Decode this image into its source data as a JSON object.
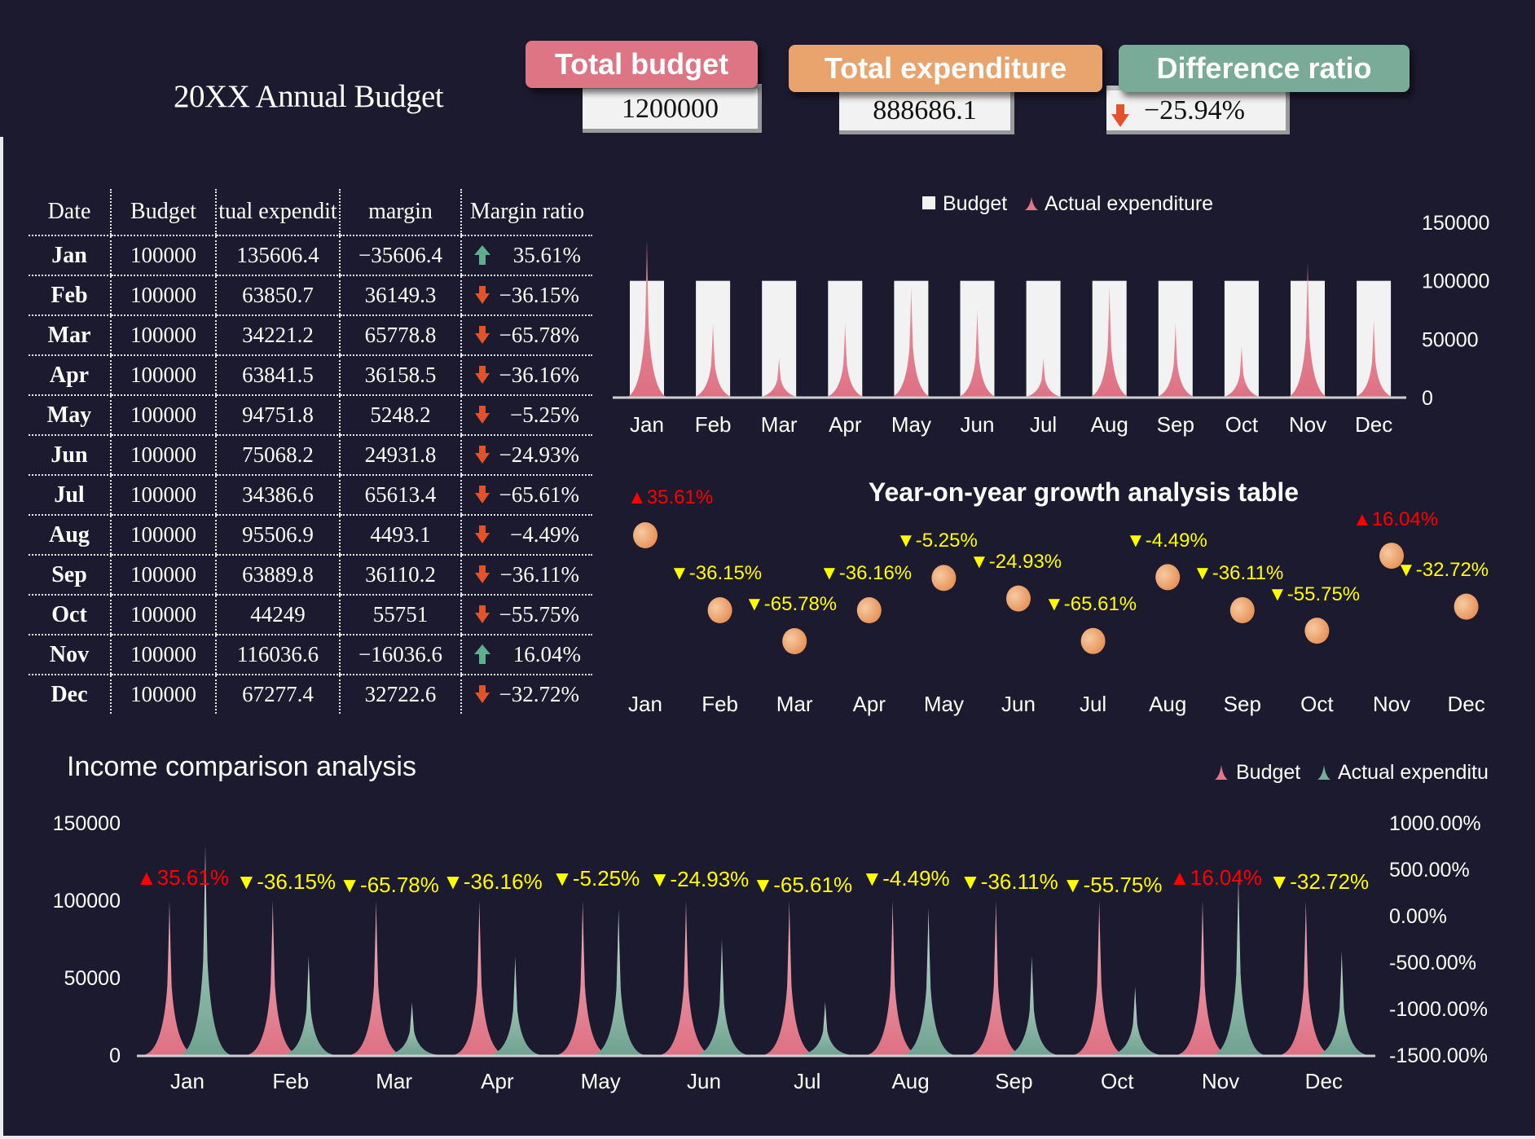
{
  "header": {
    "title": "20XX Annual Budget",
    "cards": [
      {
        "label": "Total budget",
        "value": "1200000",
        "color": "#dd7585"
      },
      {
        "label": "Total expenditure",
        "value": "888686.1",
        "color": "#e9a46e"
      },
      {
        "label": "Difference ratio",
        "value": "−25.94%",
        "color": "#7aab98",
        "trend": "down"
      }
    ]
  },
  "table": {
    "columns": [
      "Date",
      "Budget",
      "tual expendit",
      "margin",
      "Margin ratio"
    ],
    "rows": [
      {
        "date": "Jan",
        "budget": "100000",
        "actual": "135606.4",
        "margin": "−35606.4",
        "ratio": "35.61%",
        "trend": "up"
      },
      {
        "date": "Feb",
        "budget": "100000",
        "actual": "63850.7",
        "margin": "36149.3",
        "ratio": "−36.15%",
        "trend": "down"
      },
      {
        "date": "Mar",
        "budget": "100000",
        "actual": "34221.2",
        "margin": "65778.8",
        "ratio": "−65.78%",
        "trend": "down"
      },
      {
        "date": "Apr",
        "budget": "100000",
        "actual": "63841.5",
        "margin": "36158.5",
        "ratio": "−36.16%",
        "trend": "down"
      },
      {
        "date": "May",
        "budget": "100000",
        "actual": "94751.8",
        "margin": "5248.2",
        "ratio": "−5.25%",
        "trend": "down"
      },
      {
        "date": "Jun",
        "budget": "100000",
        "actual": "75068.2",
        "margin": "24931.8",
        "ratio": "−24.93%",
        "trend": "down"
      },
      {
        "date": "Jul",
        "budget": "100000",
        "actual": "34386.6",
        "margin": "65613.4",
        "ratio": "−65.61%",
        "trend": "down"
      },
      {
        "date": "Aug",
        "budget": "100000",
        "actual": "95506.9",
        "margin": "4493.1",
        "ratio": "−4.49%",
        "trend": "down"
      },
      {
        "date": "Sep",
        "budget": "100000",
        "actual": "63889.8",
        "margin": "36110.2",
        "ratio": "−36.11%",
        "trend": "down"
      },
      {
        "date": "Oct",
        "budget": "100000",
        "actual": "44249",
        "margin": "55751",
        "ratio": "−55.75%",
        "trend": "down"
      },
      {
        "date": "Nov",
        "budget": "100000",
        "actual": "116036.6",
        "margin": "−16036.6",
        "ratio": "16.04%",
        "trend": "up"
      },
      {
        "date": "Dec",
        "budget": "100000",
        "actual": "67277.4",
        "margin": "32722.6",
        "ratio": "−32.72%",
        "trend": "down"
      }
    ]
  },
  "colors": {
    "background": "#1c1a2e",
    "budget_bar": "#f2f2f2",
    "budget_spike": "#e0788a",
    "actual_spike_pink": "#e0788a",
    "actual_spike_green": "#7aab98",
    "dot": "#eba16a",
    "label_up": "#ff0000",
    "label_down": "#ffff00",
    "arrow_up": "#5fae8f",
    "arrow_down": "#e2532b"
  },
  "chart_data": [
    {
      "type": "bar",
      "id": "budget-vs-actual",
      "title": "",
      "legend": [
        "Budget",
        "Actual  expenditure"
      ],
      "legend_position": "top",
      "categories": [
        "Jan",
        "Feb",
        "Mar",
        "Apr",
        "May",
        "Jun",
        "Jul",
        "Aug",
        "Sep",
        "Oct",
        "Nov",
        "Dec"
      ],
      "series": [
        {
          "name": "Budget",
          "kind": "bar",
          "values": [
            100000,
            100000,
            100000,
            100000,
            100000,
            100000,
            100000,
            100000,
            100000,
            100000,
            100000,
            100000
          ]
        },
        {
          "name": "Actual  expenditure",
          "kind": "spike",
          "values": [
            135606.4,
            63850.7,
            34221.2,
            63841.5,
            94751.8,
            75068.2,
            34386.6,
            95506.9,
            63889.8,
            44249,
            116036.6,
            67277.4
          ]
        }
      ],
      "yaxis_position": "right",
      "yticks": [
        "0",
        "50000",
        "100000",
        "150000"
      ],
      "ylim": [
        0,
        150000
      ],
      "grid": false
    },
    {
      "type": "scatter",
      "id": "yoy-growth",
      "title": "Year-on-year  growth  analysis  table",
      "categories": [
        "Jan",
        "Feb",
        "Mar",
        "Apr",
        "May",
        "Jun",
        "Jul",
        "Aug",
        "Sep",
        "Oct",
        "Nov",
        "Dec"
      ],
      "values": [
        35.61,
        -36.15,
        -65.78,
        -36.16,
        -5.25,
        -24.93,
        -65.61,
        -4.49,
        -36.11,
        -55.75,
        16.04,
        -32.72
      ],
      "labels": [
        "▲35.61%",
        "▼-36.15%",
        "▼-65.78%",
        "▼-36.16%",
        "▼-5.25%",
        "▼-24.93%",
        "▼-65.61%",
        "▼-4.49%",
        "▼-36.11%",
        "▼-55.75%",
        "▲16.04%",
        "▼-32.72%"
      ],
      "grid": false
    },
    {
      "type": "bar",
      "id": "income-comparison",
      "title": "Income  comparison  analysis",
      "legend": [
        "Budget",
        "Actual  expenditu"
      ],
      "legend_position": "top-right",
      "categories": [
        "Jan",
        "Feb",
        "Mar",
        "Apr",
        "May",
        "Jun",
        "Jul",
        "Aug",
        "Sep",
        "Oct",
        "Nov",
        "Dec"
      ],
      "series": [
        {
          "name": "Budget",
          "kind": "spike",
          "values": [
            100000,
            100000,
            100000,
            100000,
            100000,
            100000,
            100000,
            100000,
            100000,
            100000,
            100000,
            100000
          ]
        },
        {
          "name": "Actual  expenditure",
          "kind": "spike",
          "values": [
            135606.4,
            63850.7,
            34221.2,
            63841.5,
            94751.8,
            75068.2,
            34386.6,
            95506.9,
            63889.8,
            44249,
            116036.6,
            67277.4
          ]
        }
      ],
      "data_labels": [
        "▲35.61%",
        "▼-36.15%",
        "▼-65.78%",
        "▼-36.16%",
        "▼-5.25%",
        "▼-24.93%",
        "▼-65.61%",
        "▼-4.49%",
        "▼-36.11%",
        "▼-55.75%",
        "▲16.04%",
        "▼-32.72%"
      ],
      "left_yticks": [
        "0",
        "50000",
        "100000",
        "150000"
      ],
      "left_ylim": [
        0,
        150000
      ],
      "right_yticks": [
        "-1500.00%",
        "-1000.00%",
        "-500.00%",
        "0.00%",
        "500.00%",
        "1000.00%"
      ],
      "right_ylim": [
        -1500,
        1000
      ],
      "grid": false
    }
  ]
}
